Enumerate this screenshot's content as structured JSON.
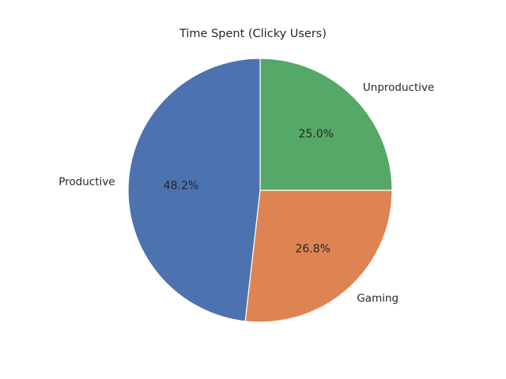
{
  "chart_data": {
    "type": "pie",
    "title": "Time Spent (Clicky Users)",
    "start_angle_deg": 90,
    "direction": "clockwise",
    "slices": [
      {
        "label": "Unproductive",
        "value": 25.0,
        "pct_label": "25.0%",
        "color": "#55a868"
      },
      {
        "label": "Gaming",
        "value": 26.8,
        "pct_label": "26.8%",
        "color": "#dd8452"
      },
      {
        "label": "Productive",
        "value": 48.2,
        "pct_label": "48.2%",
        "color": "#4c72b0"
      }
    ]
  }
}
